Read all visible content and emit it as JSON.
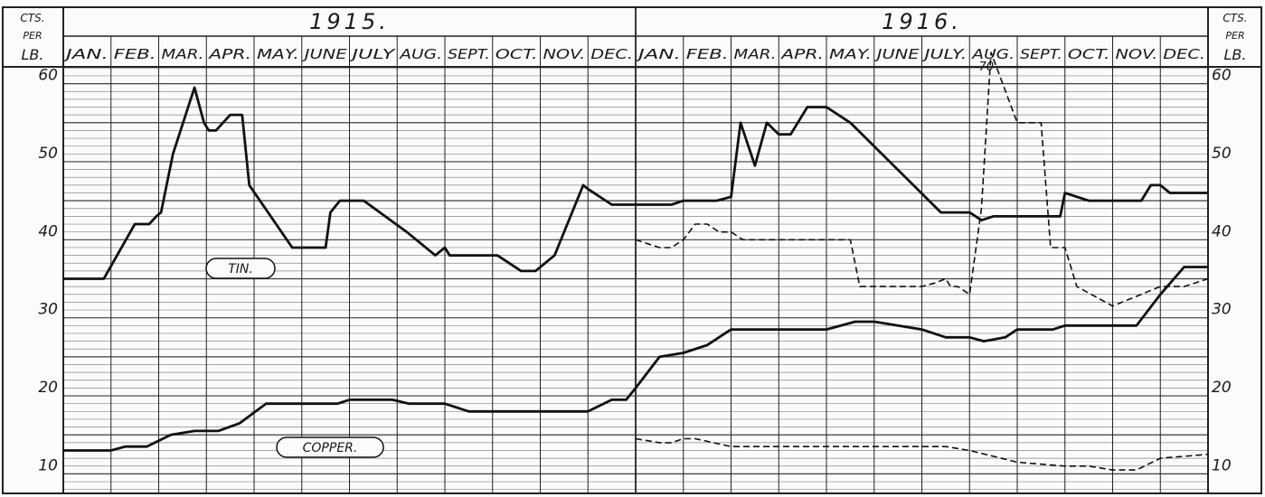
{
  "chart_data": {
    "type": "line",
    "years": [
      "1915.",
      "1916."
    ],
    "months": [
      "JAN.",
      "FEB.",
      "MAR.",
      "APR.",
      "MAY.",
      "JUNE",
      "JULY",
      "AUG.",
      "SEPT.",
      "OCT.",
      "NOV.",
      "DEC.",
      "JAN.",
      "FEB.",
      "MAR.",
      "APR.",
      "MAY.",
      "JUNE",
      "JULY.",
      "AUG.",
      "SEPT.",
      "OCT.",
      "NOV.",
      "DEC."
    ],
    "unit_left": [
      "CTS.",
      "PER",
      "LB."
    ],
    "unit_right": [
      "CTS.",
      "PER",
      "LB."
    ],
    "y_tick_values": [
      10,
      20,
      30,
      40,
      50,
      60
    ],
    "y_tick_labels": [
      "10",
      "20",
      "30",
      "40",
      "50",
      "60"
    ],
    "ylim": [
      7.5,
      62.5
    ],
    "xlim": [
      0,
      24
    ],
    "series": [
      {
        "name": "TIN.",
        "style": "solid",
        "x": [
          0,
          0.85,
          1.5,
          1.8,
          1.95,
          2.05,
          2.3,
          2.75,
          2.95,
          3.05,
          3.2,
          3.5,
          3.75,
          3.9,
          4.8,
          5.0,
          5.5,
          5.6,
          5.8,
          6.3,
          7.2,
          7.8,
          8.0,
          8.1,
          8.4,
          9.1,
          9.6,
          9.9,
          10.3,
          10.9,
          11.0,
          11.5,
          12.0,
          12.75,
          13.0,
          13.5,
          13.7,
          14.0,
          14.2,
          14.5,
          14.75,
          15.0,
          15.25,
          15.6,
          16.0,
          16.5,
          18.4,
          19.0,
          19.25,
          19.5,
          20.0,
          20.6,
          20.9,
          21.0,
          21.5,
          21.8,
          22.6,
          22.8,
          23.0,
          23.2,
          23.5,
          24.0
        ],
        "values": [
          35.0,
          35.0,
          42.0,
          42.0,
          43.0,
          43.5,
          51.0,
          59.5,
          55.0,
          54.0,
          54.0,
          56.0,
          56.0,
          47.0,
          39.0,
          39.0,
          39.0,
          43.5,
          45.0,
          45.0,
          41.0,
          38.0,
          39.0,
          38.0,
          38.0,
          38.0,
          36.0,
          36.0,
          38.0,
          47.0,
          46.5,
          44.5,
          44.5,
          44.5,
          45.0,
          45.0,
          45.0,
          45.5,
          55.0,
          49.5,
          55.0,
          53.5,
          53.5,
          57.0,
          57.0,
          55.0,
          43.5,
          43.5,
          42.5,
          43.0,
          43.0,
          43.0,
          43.0,
          46.0,
          45.0,
          45.0,
          45.0,
          47.0,
          47.0,
          46.0,
          46.0,
          46.0
        ]
      },
      {
        "name": "COPPER.",
        "style": "solid",
        "x": [
          0,
          0.5,
          1.0,
          1.3,
          1.55,
          1.75,
          2.25,
          2.75,
          3.25,
          3.7,
          4.25,
          5.0,
          5.4,
          5.75,
          6.0,
          6.5,
          6.9,
          7.25,
          7.6,
          8.0,
          8.5,
          9.5,
          10.5,
          11.0,
          11.5,
          11.8,
          12.0,
          12.5,
          13.0,
          13.5,
          14.0,
          14.7,
          15.0,
          16.0,
          16.6,
          17.0,
          18.0,
          18.5,
          19.0,
          19.3,
          19.75,
          20.0,
          20.5,
          20.75,
          21.0,
          21.5,
          22.0,
          22.5,
          23.0,
          23.5,
          24.0
        ],
        "values": [
          13.0,
          13.0,
          13.0,
          13.5,
          13.5,
          13.5,
          15.0,
          15.5,
          15.5,
          16.5,
          19.0,
          19.0,
          19.0,
          19.0,
          19.5,
          19.5,
          19.5,
          19.0,
          19.0,
          19.0,
          18.0,
          18.0,
          18.0,
          18.0,
          19.5,
          19.5,
          21.0,
          25.0,
          25.5,
          26.5,
          28.5,
          28.5,
          28.5,
          28.5,
          29.5,
          29.5,
          28.5,
          27.5,
          27.5,
          27.0,
          27.5,
          28.5,
          28.5,
          28.5,
          29.0,
          29.0,
          29.0,
          29.0,
          33.0,
          36.5,
          36.5
        ]
      },
      {
        "style": "dashed",
        "x": [
          12.0,
          12.5,
          12.75,
          13.0,
          13.25,
          13.5,
          13.75,
          14.0,
          14.25,
          15.0,
          16.0,
          16.5,
          16.7,
          17.0,
          17.5,
          18.0,
          18.3,
          18.5,
          18.6,
          18.75,
          19.0,
          19.25,
          19.45,
          20.0,
          20.25,
          20.5,
          20.7,
          21.0,
          21.25,
          22.0,
          23.0,
          23.5,
          24.0
        ],
        "values": [
          40.0,
          39.0,
          39.0,
          40.0,
          42.0,
          42.0,
          41.0,
          41.0,
          40.0,
          40.0,
          40.0,
          40.0,
          34.0,
          34.0,
          34.0,
          34.0,
          34.5,
          35.0,
          34.0,
          34.0,
          33.0,
          44.0,
          64.0,
          55.0,
          55.0,
          55.0,
          39.0,
          39.0,
          34.0,
          31.5,
          34.0,
          34.0,
          35.0
        ]
      },
      {
        "style": "dashed",
        "x": [
          12.0,
          12.5,
          12.75,
          13.0,
          13.25,
          14.0,
          15.0,
          16.0,
          17.0,
          18.0,
          18.5,
          19.0,
          20.0,
          21.0,
          21.5,
          22.0,
          22.5,
          23.0,
          24.0
        ],
        "values": [
          14.5,
          14.0,
          14.0,
          14.5,
          14.5,
          13.5,
          13.5,
          13.5,
          13.5,
          13.5,
          13.5,
          13.0,
          11.5,
          11.0,
          11.0,
          10.5,
          10.5,
          12.0,
          12.5
        ]
      }
    ],
    "annotations": [
      "70"
    ],
    "grid": true,
    "legend": "inline labels"
  }
}
